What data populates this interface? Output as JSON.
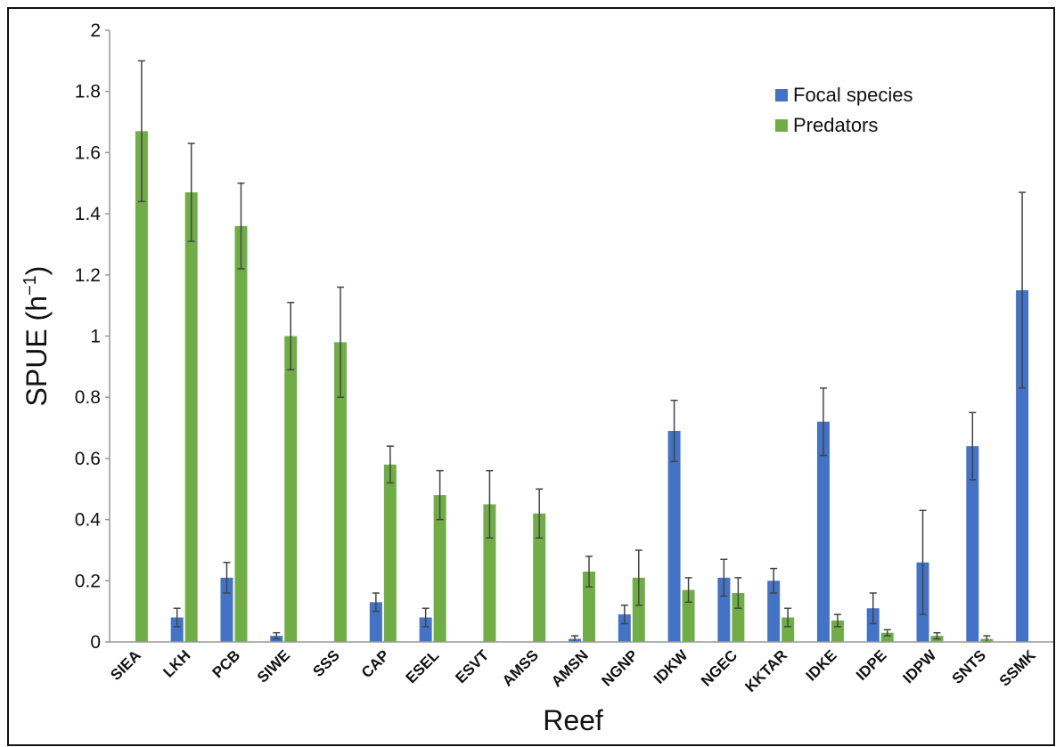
{
  "chart_data": {
    "type": "bar",
    "ylabel": "SPUE (h",
    "ylabel_sup": "−1",
    "ylabel_close": ")",
    "xlabel": "Reef",
    "ylim": [
      0,
      2
    ],
    "yticks": [
      "0",
      "0.2",
      "0.4",
      "0.6",
      "0.8",
      "1",
      "1.2",
      "1.4",
      "1.6",
      "1.8",
      "2"
    ],
    "ytick_values": [
      0,
      0.2,
      0.4,
      0.6,
      0.8,
      1,
      1.2,
      1.4,
      1.6,
      1.8,
      2
    ],
    "grid": false,
    "legend_position": "top-right",
    "categories": [
      "SIEA",
      "LKH",
      "PCB",
      "SIWE",
      "SSS",
      "CAP",
      "ESEL",
      "ESVT",
      "AMSS",
      "AMSN",
      "NGNP",
      "IDKW",
      "NGEC",
      "KKTAR",
      "IDKE",
      "IDPE",
      "IDPW",
      "SNTS",
      "SSMK"
    ],
    "series": [
      {
        "name": "Focal species",
        "color": "#4472c4",
        "values": [
          0,
          0.08,
          0.21,
          0.02,
          0,
          0.13,
          0.08,
          0,
          0,
          0.01,
          0.09,
          0.69,
          0.21,
          0.2,
          0.72,
          0.11,
          0.26,
          0.64,
          1.15
        ],
        "errors": [
          0,
          0.03,
          0.05,
          0.01,
          0,
          0.03,
          0.03,
          0,
          0,
          0.01,
          0.03,
          0.1,
          0.06,
          0.04,
          0.11,
          0.05,
          0.17,
          0.11,
          0.32
        ]
      },
      {
        "name": "Predators",
        "color": "#70ad47",
        "values": [
          1.67,
          1.47,
          1.36,
          1.0,
          0.98,
          0.58,
          0.48,
          0.45,
          0.42,
          0.23,
          0.21,
          0.17,
          0.16,
          0.08,
          0.07,
          0.03,
          0.02,
          0.01,
          0
        ],
        "errors": [
          0.23,
          0.16,
          0.14,
          0.11,
          0.18,
          0.06,
          0.08,
          0.11,
          0.08,
          0.05,
          0.09,
          0.04,
          0.05,
          0.03,
          0.02,
          0.01,
          0.01,
          0.01,
          0
        ]
      }
    ]
  }
}
